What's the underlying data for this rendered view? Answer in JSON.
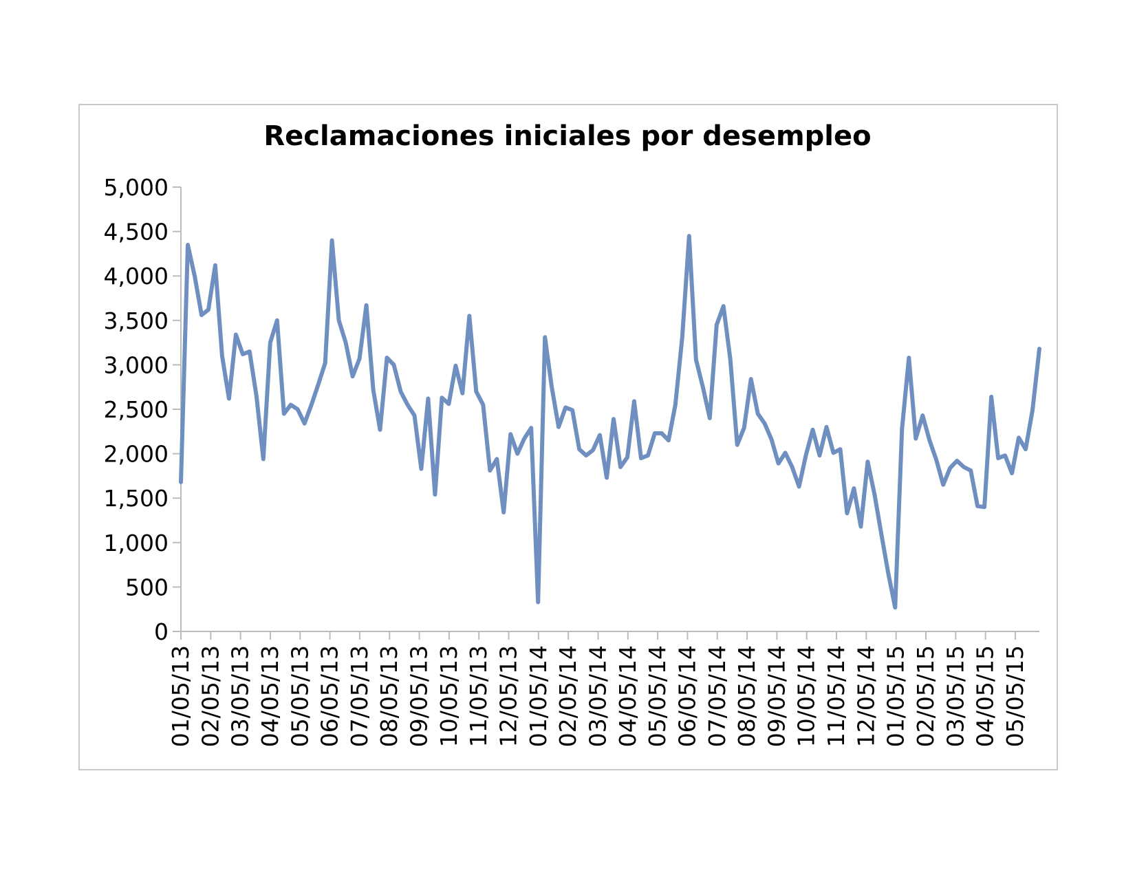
{
  "chart_data": {
    "type": "line",
    "title": "Reclamaciones iniciales por desempleo",
    "xlabel": "",
    "ylabel": "",
    "ylim": [
      0,
      5000
    ],
    "y_ticks": [
      0,
      500,
      1000,
      1500,
      2000,
      2500,
      3000,
      3500,
      4000,
      4500,
      5000
    ],
    "y_tick_labels": [
      "0",
      "500",
      "1,000",
      "1,500",
      "2,000",
      "2,500",
      "3,000",
      "3,500",
      "4,000",
      "4,500",
      "5,000"
    ],
    "x_tick_labels": [
      "01/05/13",
      "02/05/13",
      "03/05/13",
      "04/05/13",
      "05/05/13",
      "06/05/13",
      "07/05/13",
      "08/05/13",
      "09/05/13",
      "10/05/13",
      "11/05/13",
      "12/05/13",
      "01/05/14",
      "02/05/14",
      "03/05/14",
      "04/05/14",
      "05/05/14",
      "06/05/14",
      "07/05/14",
      "08/05/14",
      "09/05/14",
      "10/05/14",
      "11/05/14",
      "12/05/14",
      "01/05/15",
      "02/05/15",
      "03/05/15",
      "04/05/15",
      "05/05/15"
    ],
    "grid": false,
    "legend": "none",
    "series": [
      {
        "color": "#6f8fc0",
        "values": [
          1680,
          4350,
          4000,
          3560,
          3620,
          4120,
          3100,
          2620,
          3340,
          3120,
          3150,
          2650,
          1940,
          3250,
          3500,
          2450,
          2550,
          2500,
          2340,
          2550,
          2780,
          3020,
          4400,
          3500,
          3250,
          2870,
          3070,
          3670,
          2720,
          2270,
          3080,
          3000,
          2700,
          2550,
          2430,
          1830,
          2620,
          1540,
          2630,
          2560,
          2990,
          2680,
          3550,
          2700,
          2550,
          1810,
          1940,
          1340,
          2220,
          2000,
          2170,
          2290,
          330,
          3310,
          2750,
          2300,
          2520,
          2490,
          2050,
          1980,
          2040,
          2210,
          1730,
          2390,
          1850,
          1960,
          2590,
          1950,
          1980,
          2230,
          2230,
          2150,
          2550,
          3310,
          4450,
          3060,
          2750,
          2400,
          3450,
          3660,
          3060,
          2100,
          2290,
          2840,
          2450,
          2340,
          2160,
          1890,
          2010,
          1850,
          1630,
          1980,
          2270,
          1980,
          2300,
          2010,
          2050,
          1330,
          1610,
          1180,
          1910,
          1540,
          1090,
          650,
          270,
          2280,
          3080,
          2170,
          2430,
          2150,
          1930,
          1650,
          1840,
          1920,
          1850,
          1810,
          1410,
          1400,
          2640,
          1950,
          1980,
          1780,
          2180,
          2050,
          2490,
          3180
        ]
      }
    ]
  }
}
